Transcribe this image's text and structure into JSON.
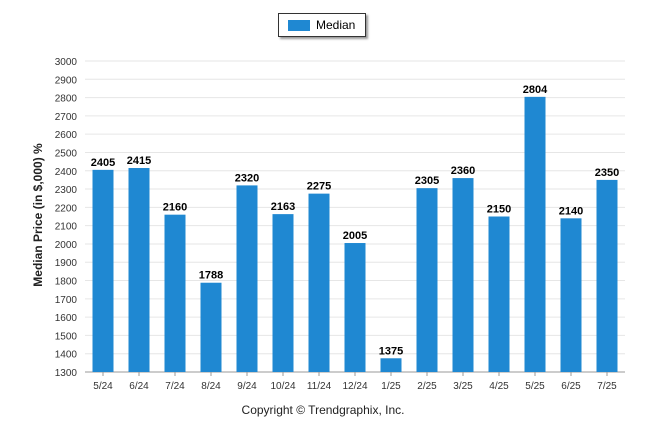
{
  "chart_data": {
    "type": "bar",
    "categories": [
      "5/24",
      "6/24",
      "7/24",
      "8/24",
      "9/24",
      "10/24",
      "11/24",
      "12/24",
      "1/25",
      "2/25",
      "3/25",
      "4/25",
      "5/25",
      "6/25",
      "7/25"
    ],
    "series": [
      {
        "name": "Median",
        "values": [
          2405,
          2415,
          2160,
          1788,
          2320,
          2163,
          2275,
          2005,
          1375,
          2305,
          2360,
          2150,
          2804,
          2140,
          2350
        ]
      }
    ],
    "ylabel": "Median Price (in $,000) %",
    "xlabel": "",
    "ylim": [
      1300,
      3000
    ],
    "yticks": [
      1300,
      1400,
      1500,
      1600,
      1700,
      1800,
      1900,
      2000,
      2100,
      2200,
      2300,
      2400,
      2500,
      2600,
      2700,
      2800,
      2900,
      3000
    ],
    "grid": true,
    "legend_placement": "top-center",
    "data_labels": true,
    "colors": {
      "bar": "#1f88d2",
      "grid": "#e6e6e6",
      "axis": "#999999"
    }
  },
  "footer": {
    "copyright": "Copyright © Trendgraphix, Inc."
  }
}
